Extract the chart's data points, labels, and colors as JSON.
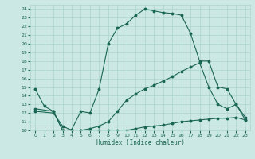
{
  "xlabel": "Humidex (Indice chaleur)",
  "background_color": "#cce8e4",
  "grid_color": "#aad4cc",
  "line_color": "#1a6655",
  "xlim": [
    -0.5,
    23.5
  ],
  "ylim": [
    10,
    24.5
  ],
  "xticks": [
    0,
    1,
    2,
    3,
    4,
    5,
    6,
    7,
    8,
    9,
    10,
    11,
    12,
    13,
    14,
    15,
    16,
    17,
    18,
    19,
    20,
    21,
    22,
    23
  ],
  "yticks": [
    10,
    11,
    12,
    13,
    14,
    15,
    16,
    17,
    18,
    19,
    20,
    21,
    22,
    23,
    24
  ],
  "line1_x": [
    0,
    1,
    2,
    3,
    4,
    5,
    6,
    7,
    8,
    9,
    10,
    11,
    12,
    13,
    14,
    15,
    16,
    17,
    18,
    19,
    20,
    21,
    22,
    23
  ],
  "line1_y": [
    14.8,
    12.8,
    12.2,
    10.0,
    10.1,
    12.2,
    12.0,
    14.8,
    20.0,
    21.8,
    22.3,
    23.3,
    24.0,
    23.8,
    23.6,
    23.5,
    23.3,
    21.2,
    18.0,
    18.0,
    15.0,
    14.8,
    13.0,
    11.2
  ],
  "line2_x": [
    0,
    2,
    3,
    4,
    5,
    6,
    7,
    8,
    9,
    10,
    11,
    12,
    13,
    14,
    15,
    16,
    17,
    18,
    19,
    20,
    21,
    22,
    23
  ],
  "line2_y": [
    12.5,
    12.2,
    10.0,
    10.0,
    10.0,
    10.2,
    10.5,
    11.0,
    12.2,
    13.5,
    14.2,
    14.8,
    15.2,
    15.7,
    16.2,
    16.8,
    17.3,
    17.8,
    15.0,
    13.0,
    12.5,
    13.0,
    11.5
  ],
  "line3_x": [
    0,
    2,
    3,
    4,
    5,
    6,
    7,
    8,
    9,
    10,
    11,
    12,
    13,
    14,
    15,
    16,
    17,
    18,
    19,
    20,
    21,
    22,
    23
  ],
  "line3_y": [
    12.2,
    12.0,
    10.5,
    10.0,
    10.0,
    10.0,
    10.0,
    10.0,
    10.0,
    10.0,
    10.2,
    10.4,
    10.5,
    10.6,
    10.8,
    11.0,
    11.1,
    11.2,
    11.3,
    11.4,
    11.4,
    11.5,
    11.2
  ]
}
